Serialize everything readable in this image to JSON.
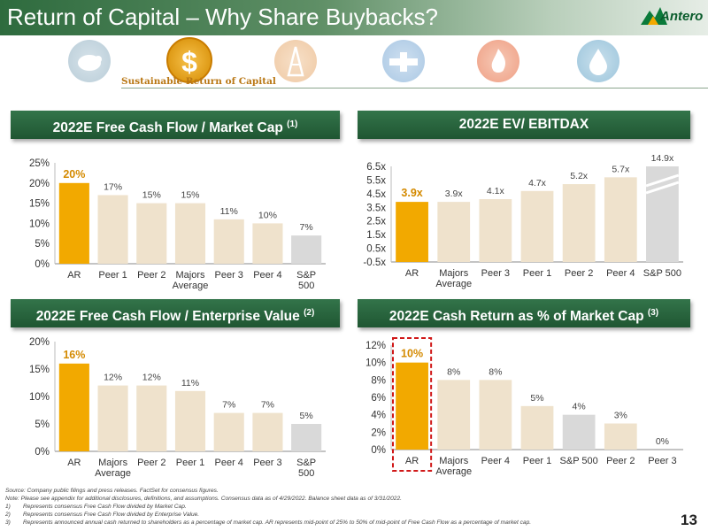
{
  "header": {
    "title": "Return of Capital – Why Share Buybacks?",
    "logo_text": "Antero"
  },
  "icon_strip": {
    "icons": [
      "piggy-bank-icon",
      "dollar-sign-icon",
      "oil-derrick-icon",
      "pipeline-icon",
      "flame-icon",
      "water-drop-icon"
    ],
    "tagline": "Sustainable Return of Capital"
  },
  "colors": {
    "highlight": "#f2a900",
    "peer": "#efe2cc",
    "sp500": "#d9d9d9",
    "title_bar": "#2b6a3f",
    "value_highlight": "#d48a00"
  },
  "chart_data": [
    {
      "id": "fcf_mktcap",
      "type": "bar",
      "title": "2022E Free Cash Flow / Market Cap",
      "footnote_ref": "(1)",
      "categories": [
        "AR",
        "Peer 1",
        "Peer 2",
        "Majors Average",
        "Peer 3",
        "Peer 4",
        "S&P 500"
      ],
      "values": [
        20,
        17,
        15,
        15,
        11,
        10,
        7
      ],
      "labels": [
        "20%",
        "17%",
        "15%",
        "15%",
        "11%",
        "10%",
        "7%"
      ],
      "ylim": [
        0,
        25
      ],
      "yticks": [
        "0%",
        "5%",
        "10%",
        "15%",
        "20%",
        "25%"
      ],
      "xlabel": "",
      "ylabel": "",
      "legend": "none",
      "grid": false
    },
    {
      "id": "ev_ebitdax",
      "type": "bar",
      "title": "2022E EV/ EBITDAX",
      "categories": [
        "AR",
        "Majors Average",
        "Peer 3",
        "Peer 1",
        "Peer 2",
        "Peer 4",
        "S&P 500"
      ],
      "values": [
        3.9,
        3.9,
        4.1,
        4.7,
        5.2,
        5.7,
        14.9
      ],
      "labels": [
        "3.9x",
        "3.9x",
        "4.1x",
        "4.7x",
        "5.2x",
        "5.7x",
        "14.9x"
      ],
      "ylim": [
        -0.5,
        6.5
      ],
      "yticks": [
        "-0.5x",
        "0.5x",
        "1.5x",
        "2.5x",
        "3.5x",
        "4.5x",
        "5.5x",
        "6.5x"
      ],
      "axis_break": "S&P 500",
      "xlabel": "",
      "ylabel": "",
      "legend": "none",
      "grid": false
    },
    {
      "id": "fcf_ev",
      "type": "bar",
      "title": "2022E Free Cash Flow / Enterprise Value",
      "footnote_ref": "(2)",
      "categories": [
        "AR",
        "Majors Average",
        "Peer 2",
        "Peer 1",
        "Peer 4",
        "Peer 3",
        "S&P 500"
      ],
      "values": [
        16,
        12,
        12,
        11,
        7,
        7,
        5
      ],
      "labels": [
        "16%",
        "12%",
        "12%",
        "11%",
        "7%",
        "7%",
        "5%"
      ],
      "ylim": [
        0,
        20
      ],
      "yticks": [
        "0%",
        "5%",
        "10%",
        "15%",
        "20%"
      ],
      "xlabel": "",
      "ylabel": "",
      "legend": "none",
      "grid": false
    },
    {
      "id": "cash_return",
      "type": "bar",
      "title": "2022E Cash Return as % of Market Cap",
      "footnote_ref": "(3)",
      "categories": [
        "AR",
        "Majors Average",
        "Peer 4",
        "Peer 1",
        "S&P 500",
        "Peer 2",
        "Peer 3"
      ],
      "values": [
        10,
        8,
        8,
        5,
        4,
        3,
        0
      ],
      "labels": [
        "10%",
        "8%",
        "8%",
        "5%",
        "4%",
        "3%",
        "0%"
      ],
      "ylim": [
        0,
        12
      ],
      "yticks": [
        "0%",
        "2%",
        "4%",
        "6%",
        "8%",
        "10%",
        "12%"
      ],
      "highlight_box": "AR",
      "xlabel": "",
      "ylabel": "",
      "legend": "none",
      "grid": false
    }
  ],
  "footnotes": {
    "source": "Source:  Company public filings and press releases. FactSet for consensus figures.",
    "note": "Note:  Please see appendix for additional disclosures, definitions, and assumptions.  Consensus data as of 4/29/2022.  Balance sheet data as of 3/31/2022.",
    "items": [
      {
        "num": "1)",
        "text": "Represents consensus Free Cash Flow divided by Market Cap."
      },
      {
        "num": "2)",
        "text": "Represents consensus Free Cash Flow divided by Enterprise Value."
      },
      {
        "num": "3)",
        "text": "Represents announced annual cash returned to shareholders as a percentage of market cap.  AR represents mid-point of 25% to 50% of mid-point of Free Cash Flow as a percentage of market cap."
      }
    ]
  },
  "page_number": "13"
}
